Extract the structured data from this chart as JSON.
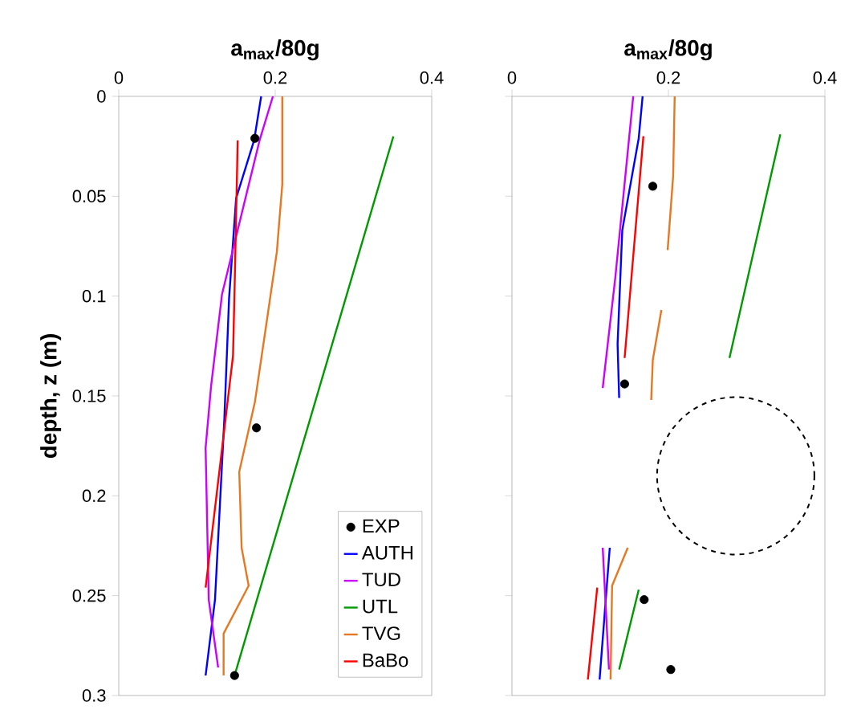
{
  "chart_data": [
    {
      "type": "line",
      "xlabel": "a$_{max}$/80g",
      "ylabel": "depth, z (m)",
      "xlim": [
        0,
        0.4
      ],
      "xticks": [
        0,
        0.2,
        0.4
      ],
      "ylim": [
        0.3,
        0
      ],
      "yticks": [
        0,
        0.05,
        0.1,
        0.15,
        0.2,
        0.25,
        0.3
      ],
      "legend": "bottom right",
      "series": [
        {
          "name": "EXP",
          "type": "scatter",
          "marker": "circle",
          "color": "#000000",
          "x": [
            0.174,
            0.176,
            0.148
          ],
          "values": [
            0.021,
            0.166,
            0.29
          ]
        },
        {
          "name": "AUTH",
          "color": "#0000ff",
          "x": [
            0.182,
            0.173,
            0.15,
            0.141,
            0.135,
            0.123,
            0.111
          ],
          "values": [
            0,
            0.022,
            0.051,
            0.101,
            0.161,
            0.252,
            0.29
          ]
        },
        {
          "name": "TUD",
          "color": "#cc00ff",
          "x": [
            0.197,
            0.18,
            0.132,
            0.118,
            0.111,
            0.115,
            0.127
          ],
          "values": [
            0,
            0.022,
            0.099,
            0.145,
            0.176,
            0.252,
            0.286
          ]
        },
        {
          "name": "UTL",
          "color": "#009900",
          "x": [
            0.351,
            0.148
          ],
          "values": [
            0.02,
            0.29
          ]
        },
        {
          "name": "TVG",
          "color": "#e87722",
          "x": [
            0.209,
            0.209,
            0.202,
            0.189,
            0.174,
            0.154,
            0.157,
            0.166,
            0.134,
            0.134
          ],
          "values": [
            0,
            0.044,
            0.078,
            0.113,
            0.153,
            0.188,
            0.226,
            0.245,
            0.269,
            0.29
          ]
        },
        {
          "name": "BaBo",
          "color": "#ff0000",
          "x": [
            0.152,
            0.148,
            0.146,
            0.111
          ],
          "values": [
            0.022,
            0.097,
            0.13,
            0.246
          ]
        }
      ]
    },
    {
      "type": "line",
      "xlabel": "a$_{max}$/80g",
      "xlim": [
        0,
        0.4
      ],
      "xticks": [
        0,
        0.2,
        0.4
      ],
      "ylim": [
        0.3,
        0
      ],
      "yticks": [
        0,
        0.05,
        0.1,
        0.15,
        0.2,
        0.25,
        0.3
      ],
      "tick_labels": "x",
      "series": [
        {
          "type": "scatter",
          "marker": "circle",
          "color": "#000000",
          "x": [
            0.18,
            0.144,
            0.169,
            0.203
          ],
          "values": [
            0.045,
            0.144,
            0.252,
            0.287
          ]
        },
        {
          "color": "#0000ff",
          "x": [
            0.167,
            0.162,
            0.141,
            0.135,
            0.137,
            null,
            0.125,
            0.112
          ],
          "values": [
            0,
            0.021,
            0.067,
            0.124,
            0.151,
            null,
            0.226,
            0.292
          ]
        },
        {
          "color": "#cc00ff",
          "x": [
            0.155,
            0.132,
            0.116,
            null,
            0.116,
            0.124
          ],
          "values": [
            0,
            0.091,
            0.146,
            null,
            0.226,
            0.287
          ]
        },
        {
          "color": "#009900",
          "x": [
            0.343,
            0.278,
            null,
            0.162,
            0.137
          ],
          "values": [
            0.019,
            0.131,
            null,
            0.247,
            0.287
          ]
        },
        {
          "color": "#e87722",
          "x": [
            0.208,
            0.206,
            0.199,
            null,
            0.191,
            0.18,
            0.178,
            null,
            0.148,
            0.128,
            0.126
          ],
          "values": [
            0,
            0.04,
            0.077,
            null,
            0.107,
            0.132,
            0.152,
            null,
            0.226,
            0.245,
            0.292
          ]
        },
        {
          "color": "#ff0000",
          "x": [
            0.168,
            0.144,
            null,
            0.109,
            0.097
          ],
          "values": [
            0.02,
            0.131,
            null,
            0.246,
            0.292
          ]
        }
      ]
    }
  ]
}
